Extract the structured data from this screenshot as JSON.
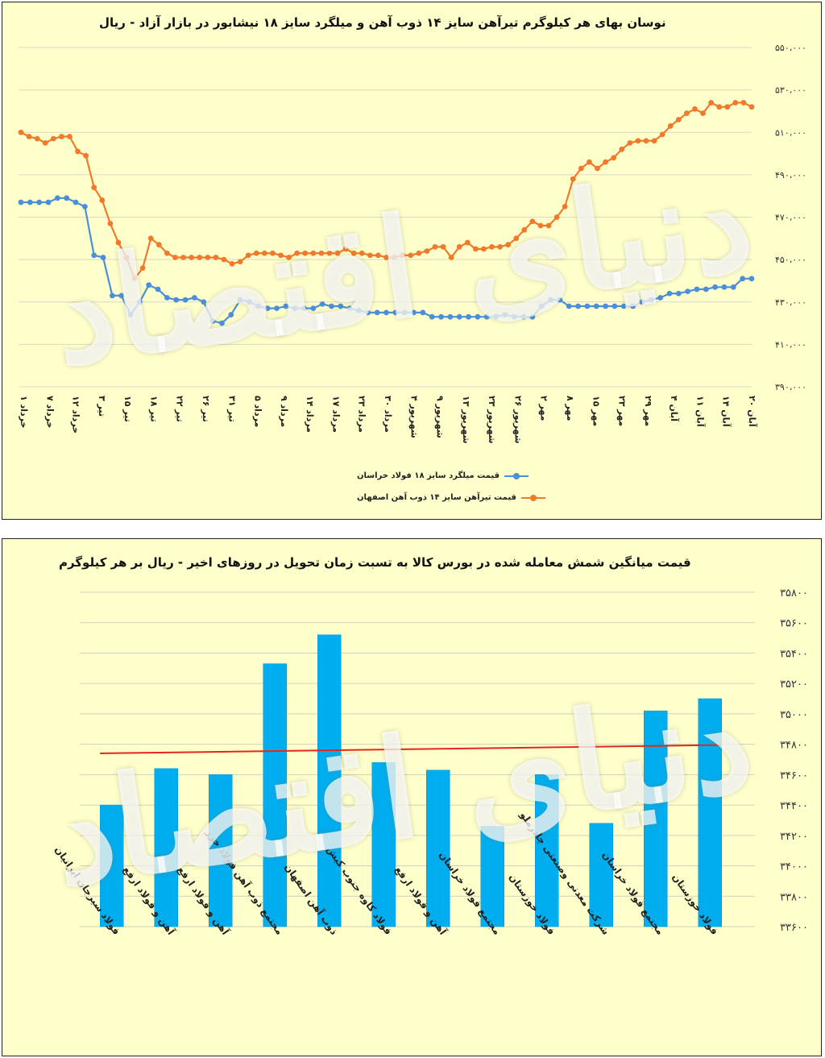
{
  "line_chart": {
    "title": "نوسان بهای هر کیلوگرم  تیرآهن سایز ۱۴ ذوب آهن و میلگرد سایز ۱۸ نیشابور در بازار آزاد - ریال",
    "watermark": "دنیای اقتصاد",
    "colors": {
      "series1": "#4a8fd8",
      "series2": "#f07a2a",
      "grid": "#d8d8c0"
    }
  },
  "bar_chart": {
    "title": "قیمت میانگین شمش معامله شده در بورس کالا به تسبت زمان تحویل در روزهای اخیر - ریال بر هر کیلوگرم",
    "watermark": "دنیای اقتصاد",
    "colors": {
      "bar": "#00aeef",
      "trend": "#e3261e"
    }
  },
  "chart_data": [
    {
      "type": "line",
      "title": "نوسان بهای هر کیلوگرم  تیرآهن سایز ۱۴ ذوب آهن و میلگرد سایز ۱۸ نیشابور در بازار آزاد - ریال",
      "ylim": [
        390000,
        550000
      ],
      "yticks": [
        "۳۹۰،۰۰۰",
        "۴۱۰،۰۰۰",
        "۴۳۰،۰۰۰",
        "۴۵۰،۰۰۰",
        "۴۷۰،۰۰۰",
        "۴۹۰،۰۰۰",
        "۵۱۰،۰۰۰",
        "۵۳۰،۰۰۰",
        "۵۵۰،۰۰۰"
      ],
      "x_labels": [
        "۱ خرداد",
        "۷ خرداد",
        "۱۲ خرداد",
        "۳ تیر",
        "۱۵ تیر",
        "۱۸ تیر",
        "۲۲ تیر",
        "۲۶ تیر",
        "۳۱ تیر",
        "۵ مرداد",
        "۹ مرداد",
        "۱۴ مرداد",
        "۱۷ مرداد",
        "۲۳ مرداد",
        "۳۰ مرداد",
        "۴ شهریور",
        "۹ شهریور",
        "۱۳ شهریور",
        "۲۳ شهریور",
        "۲۶ شهریور",
        "۲ مهر",
        "۸ مهر",
        "۱۵ مهر",
        "۲۳ مهر",
        "۲۹ مهر",
        "۴ آبان",
        "۱۱ آبان",
        "۱۴ آبان",
        "۲۰ آبان"
      ],
      "grid": true,
      "legend": "bottom",
      "series": [
        {
          "name": "قیمت میلگرد سایز ۱۸ فولاد خراسان",
          "color": "#4a8fd8",
          "values": [
            477000,
            477000,
            477000,
            477000,
            479000,
            479000,
            477000,
            475000,
            452000,
            451000,
            433000,
            433000,
            424000,
            430000,
            438000,
            436000,
            432000,
            431000,
            431000,
            432000,
            430000,
            421000,
            420000,
            424000,
            431000,
            430000,
            428000,
            427000,
            427000,
            428000,
            427000,
            427000,
            427000,
            429000,
            428000,
            428000,
            427000,
            426000,
            425000,
            425000,
            425000,
            425000,
            425000,
            425000,
            425000,
            423000,
            423000,
            423000,
            423000,
            423000,
            423000,
            423000,
            423000,
            424000,
            423000,
            423000,
            423000,
            428000,
            431000,
            431000,
            428000,
            428000,
            428000,
            428000,
            428000,
            428000,
            428000,
            428000,
            430000,
            431000,
            432000,
            434000,
            434000,
            435000,
            436000,
            436000,
            437000,
            437000,
            437000,
            441000,
            441000
          ]
        },
        {
          "name": "قیمت تیرآهن سایز ۱۴ ذوب آهن اصفهان",
          "color": "#f07a2a",
          "values": [
            510000,
            508000,
            507000,
            505000,
            507000,
            508000,
            508000,
            501000,
            499000,
            484000,
            478000,
            467000,
            458000,
            451000,
            441000,
            446000,
            460000,
            457000,
            453000,
            451000,
            451000,
            451000,
            451000,
            451000,
            451000,
            450000,
            448000,
            449000,
            452000,
            453000,
            453000,
            453000,
            452000,
            451000,
            453000,
            453000,
            453000,
            453000,
            453000,
            453000,
            455000,
            453000,
            453000,
            452000,
            452000,
            451000,
            451000,
            452000,
            452000,
            453000,
            454000,
            456000,
            456000,
            451000,
            456000,
            458000,
            455000,
            455000,
            456000,
            456000,
            457000,
            460000,
            464000,
            468000,
            466000,
            466000,
            470000,
            475000,
            488000,
            493000,
            496000,
            493000,
            496000,
            498000,
            502000,
            505000,
            506000,
            506000,
            506000,
            509000,
            513000,
            516000,
            519000,
            521000,
            519000,
            524000,
            522000,
            522000,
            524000,
            524000,
            522000
          ]
        }
      ]
    },
    {
      "type": "bar",
      "title": "قیمت میانگین شمش معامله شده در بورس کالا به تسبت زمان تحویل در روزهای اخیر - ریال بر هر کیلوگرم",
      "ylim": [
        33600,
        35800
      ],
      "yticks": [
        "۳۳۶۰۰",
        "۳۳۸۰۰",
        "۳۴۰۰۰",
        "۳۴۲۰۰",
        "۳۴۴۰۰",
        "۳۴۶۰۰",
        "۳۴۸۰۰",
        "۳۵۰۰۰",
        "۳۵۲۰۰",
        "۳۵۴۰۰",
        "۳۵۶۰۰",
        "۳۵۸۰۰"
      ],
      "categories": [
        "فولاد سیرجان ایرانیان",
        "آهن و فولاد ارفع",
        "آهن و فولاد ارفع",
        "مجتمع ذوب آهن فولاد خزر",
        "ذوب آهن اصفهان",
        "فولاد کاوه جنوب کیش",
        "آهن و فولاد ارفع",
        "مجتمع فولاد خراسان",
        "فولاد خوزستان",
        "شرکت معدنی وصنعتی چادرملو",
        "مجتمع فولاد خراسان",
        "فولاد خوزستان"
      ],
      "values": [
        34400,
        34640,
        34600,
        35330,
        35520,
        34680,
        34630,
        34260,
        34600,
        34280,
        35020,
        35100
      ],
      "trendline": [
        34740,
        34795
      ],
      "grid": true
    }
  ]
}
